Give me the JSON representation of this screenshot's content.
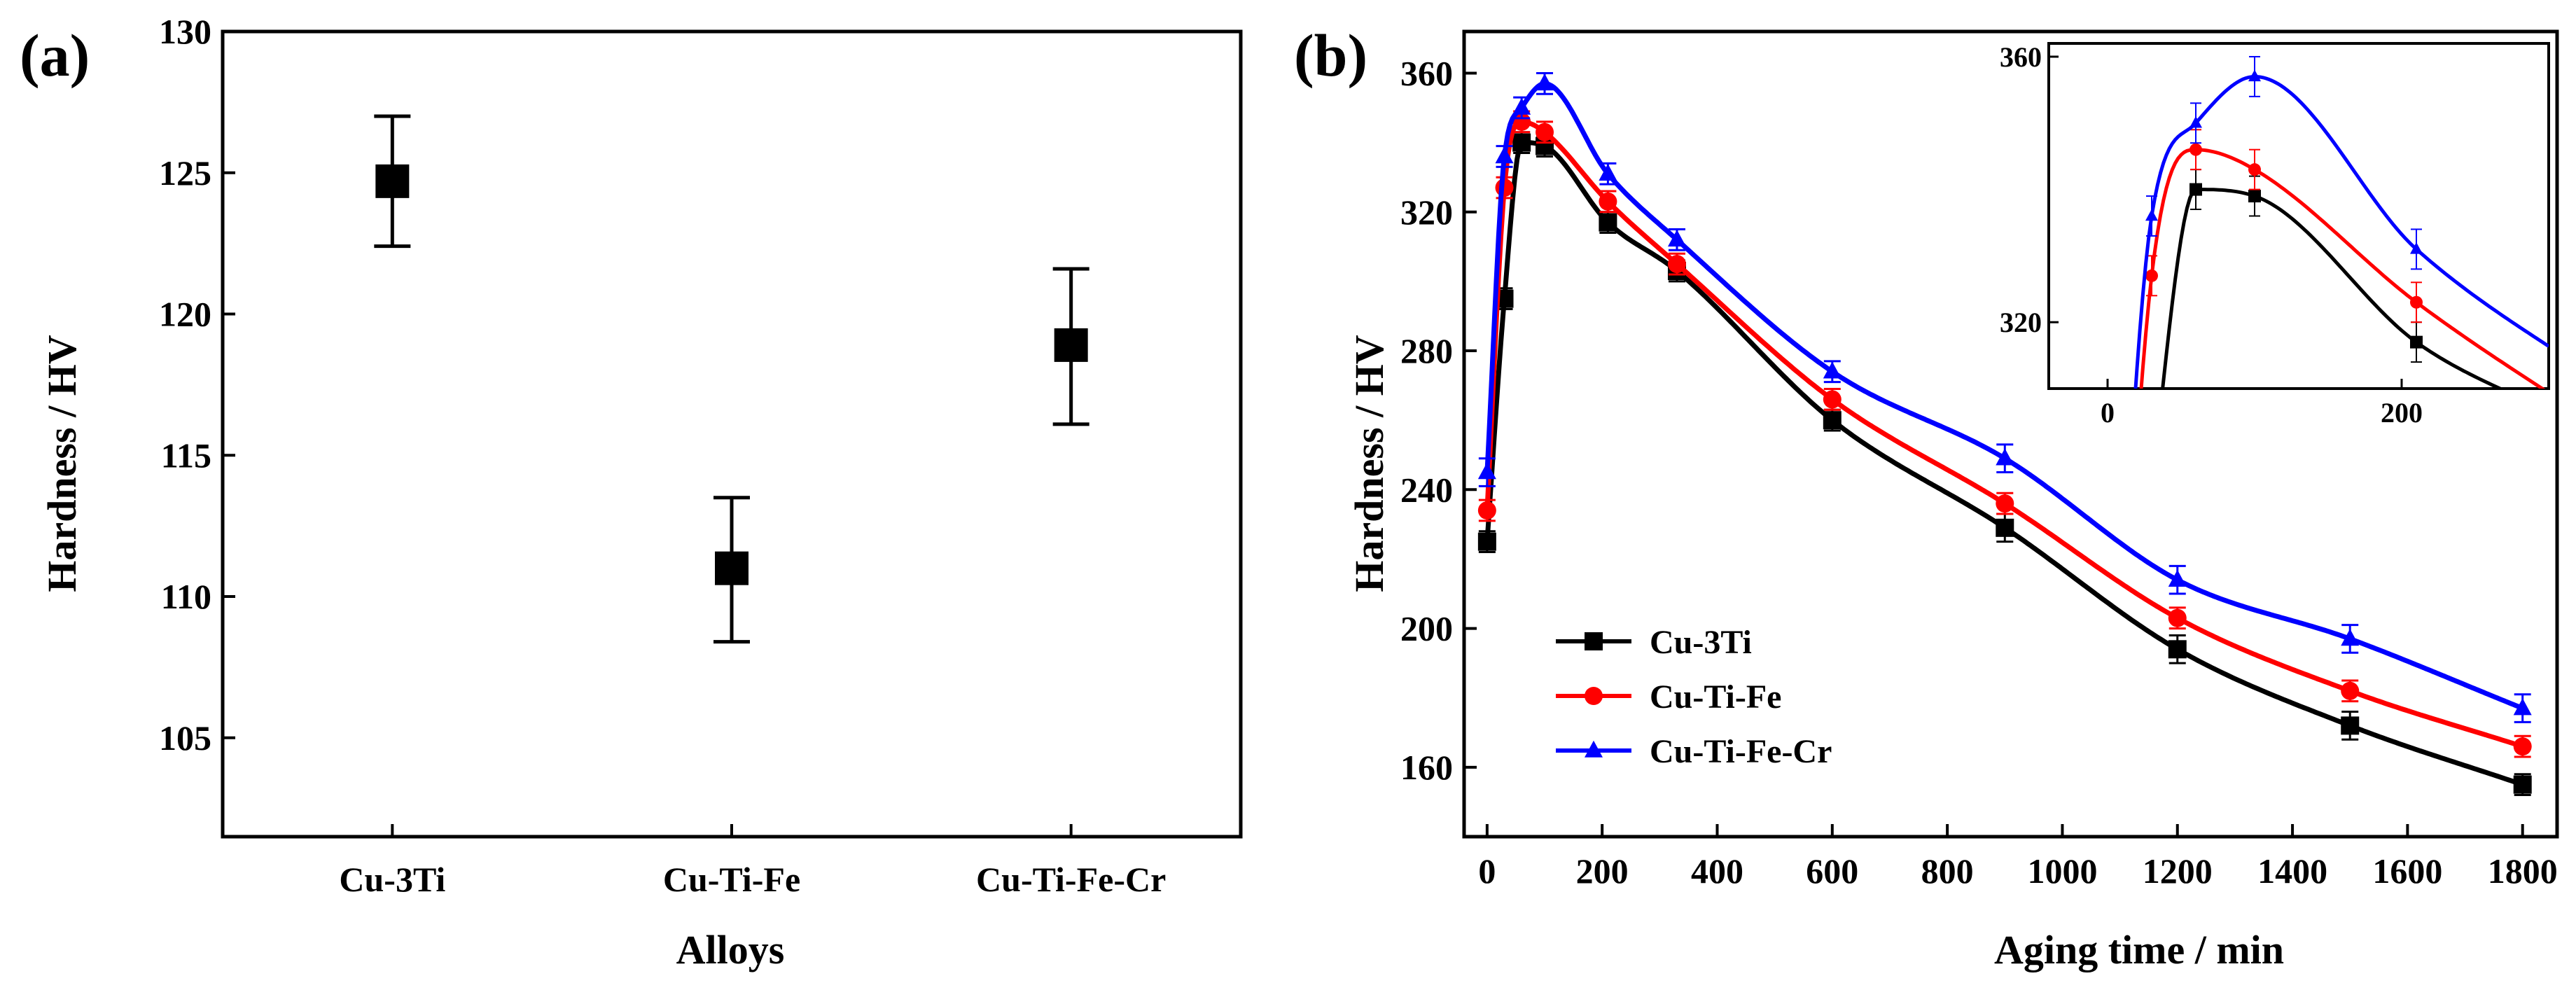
{
  "chart_data": [
    {
      "panel": "(a)",
      "type": "scatter",
      "title": "",
      "xlabel": "Alloys",
      "ylabel": "Hardness / HV",
      "categories": [
        "Cu-3Ti",
        "Cu-Ti-Fe",
        "Cu-Ti-Fe-Cr"
      ],
      "values": [
        124.7,
        111.0,
        118.9
      ],
      "error_low": [
        122.4,
        108.4,
        116.1
      ],
      "error_high": [
        127.0,
        113.5,
        121.6
      ],
      "ylim": [
        101.5,
        130
      ],
      "yticks": [
        105,
        110,
        115,
        120,
        125,
        130
      ],
      "grid": false,
      "legend": "none"
    },
    {
      "panel": "(b)",
      "type": "line",
      "title": "",
      "xlabel": "Aging time / min",
      "ylabel": "Hardness / HV",
      "xlim": [
        -40,
        1860
      ],
      "ylim": [
        140,
        372
      ],
      "xticks": [
        0,
        200,
        400,
        600,
        800,
        1000,
        1200,
        1400,
        1600,
        1800
      ],
      "yticks": [
        160,
        200,
        240,
        280,
        320,
        360
      ],
      "grid": false,
      "legend": "lower-left",
      "series": [
        {
          "name": "Cu-3Ti",
          "color": "#000000",
          "marker": "square",
          "x": [
            0,
            30,
            60,
            100,
            210,
            330,
            600,
            900,
            1200,
            1500,
            1800
          ],
          "y": [
            225,
            295,
            340,
            339,
            317,
            303,
            260,
            229,
            194,
            172,
            155
          ],
          "err": [
            3,
            3,
            3,
            3,
            3,
            3,
            3,
            4,
            4,
            4,
            3
          ]
        },
        {
          "name": "Cu-Ti-Fe",
          "color": "#ff0000",
          "marker": "circle",
          "x": [
            0,
            30,
            60,
            100,
            210,
            330,
            600,
            900,
            1200,
            1500,
            1800
          ],
          "y": [
            234,
            327,
            346,
            343,
            323,
            305,
            266,
            236,
            203,
            182,
            166
          ],
          "err": [
            3,
            3,
            3,
            3,
            3,
            3,
            3,
            3,
            3,
            3,
            3
          ]
        },
        {
          "name": "Cu-Ti-Fe-Cr",
          "color": "#0000ff",
          "marker": "triangle",
          "x": [
            0,
            30,
            60,
            100,
            210,
            330,
            600,
            900,
            1200,
            1500,
            1800
          ],
          "y": [
            245,
            336,
            350,
            357,
            331,
            312,
            274,
            249,
            214,
            197,
            177
          ],
          "err": [
            4,
            3,
            3,
            3,
            3,
            3,
            3,
            4,
            4,
            4,
            4
          ]
        }
      ],
      "inset": {
        "xlim": [
          -40,
          300
        ],
        "ylim": [
          310,
          362
        ],
        "xticks": [
          0,
          200
        ],
        "yticks": [
          320,
          360
        ]
      }
    }
  ]
}
